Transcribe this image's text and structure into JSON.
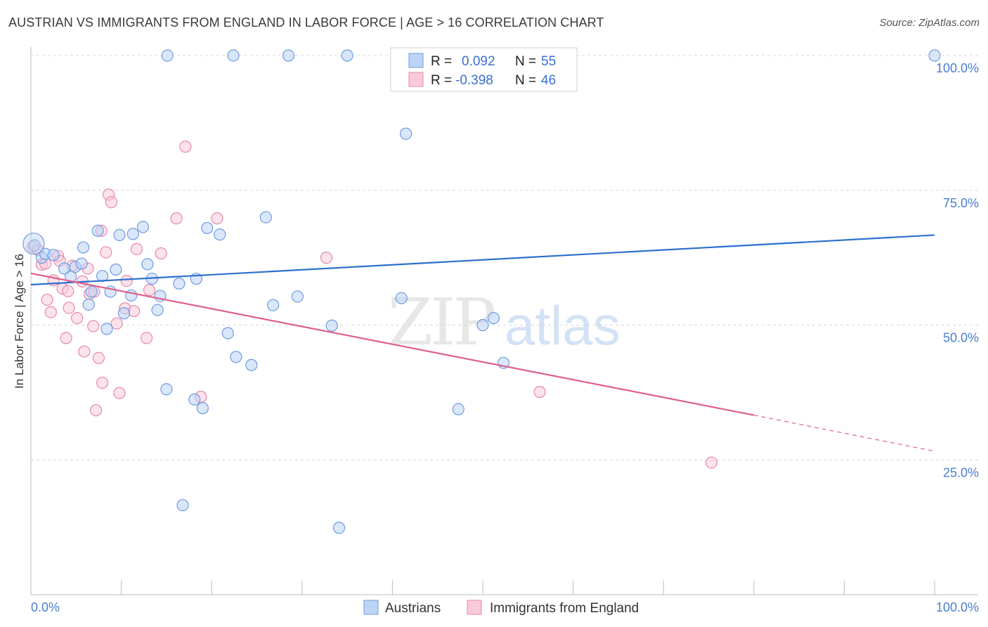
{
  "title": "AUSTRIAN VS IMMIGRANTS FROM ENGLAND IN LABOR FORCE | AGE > 16 CORRELATION CHART",
  "source": "Source: ZipAtlas.com",
  "watermark": {
    "zip": "ZIP",
    "atlas": "atlas"
  },
  "colors": {
    "blue_fill": "#bcd4f5",
    "blue_stroke": "#6f9be0",
    "blue_line": "#2b6fd0",
    "pink_fill": "#f9cad9",
    "pink_stroke": "#e58aaa",
    "pink_line": "#e0608c",
    "grid": "#d8d8d8",
    "axis_text": "#4a7fd0"
  },
  "legend_box": {
    "rows": [
      {
        "r_label": "R =",
        "r_value": "0.092",
        "n_label": "N =",
        "n_value": "55",
        "series": "Austrians"
      },
      {
        "r_label": "R =",
        "r_value": "-0.398",
        "n_label": "N =",
        "n_value": "46",
        "series": "Immigrants from England"
      }
    ]
  },
  "chart_data": {
    "type": "scatter",
    "title": "AUSTRIAN VS IMMIGRANTS FROM ENGLAND IN LABOR FORCE | AGE > 16 CORRELATION CHART",
    "xlabel": "",
    "ylabel": "In Labor Force | Age > 16",
    "xlim": [
      0,
      100
    ],
    "ylim": [
      0,
      100
    ],
    "x_tick_labels": [
      "0.0%",
      "100.0%"
    ],
    "y_ticks": [
      {
        "value": 100,
        "label": "100.0%"
      },
      {
        "value": 75,
        "label": "75.0%"
      },
      {
        "value": 50,
        "label": "50.0%"
      },
      {
        "value": 25,
        "label": "25.0%"
      }
    ],
    "legend_position": "bottom",
    "series": [
      {
        "name": "Austrians",
        "color": "#6f9be0",
        "trend": {
          "x": [
            0,
            100
          ],
          "y": [
            57.5,
            66.7
          ]
        },
        "points": [
          [
            0.4,
            64.8
          ],
          [
            1.2,
            62.5
          ],
          [
            1.6,
            63.2
          ],
          [
            2.5,
            63.0
          ],
          [
            3.7,
            60.5
          ],
          [
            4.4,
            59.0
          ],
          [
            4.9,
            60.8
          ],
          [
            5.6,
            61.4
          ],
          [
            5.8,
            64.4
          ],
          [
            6.4,
            53.8
          ],
          [
            6.7,
            56.2
          ],
          [
            7.4,
            67.5
          ],
          [
            7.9,
            59.1
          ],
          [
            8.4,
            49.3
          ],
          [
            8.8,
            56.2
          ],
          [
            9.4,
            60.3
          ],
          [
            9.8,
            66.7
          ],
          [
            10.3,
            52.2
          ],
          [
            11.1,
            55.5
          ],
          [
            11.3,
            66.9
          ],
          [
            12.4,
            68.2
          ],
          [
            12.9,
            61.3
          ],
          [
            13.4,
            58.6
          ],
          [
            14.0,
            52.8
          ],
          [
            14.3,
            55.4
          ],
          [
            15.1,
            100.0
          ],
          [
            15.0,
            38.1
          ],
          [
            16.4,
            57.7
          ],
          [
            16.8,
            16.6
          ],
          [
            18.1,
            36.2
          ],
          [
            18.3,
            58.6
          ],
          [
            19.0,
            34.6
          ],
          [
            19.5,
            68.0
          ],
          [
            20.9,
            66.8
          ],
          [
            21.8,
            48.5
          ],
          [
            22.4,
            100.0
          ],
          [
            22.7,
            44.1
          ],
          [
            24.4,
            42.6
          ],
          [
            26.0,
            70.0
          ],
          [
            26.8,
            53.7
          ],
          [
            28.5,
            100.0
          ],
          [
            29.5,
            55.3
          ],
          [
            33.3,
            49.9
          ],
          [
            34.1,
            12.4
          ],
          [
            35.0,
            100.0
          ],
          [
            41.0,
            55.0
          ],
          [
            41.5,
            85.5
          ],
          [
            47.3,
            34.4
          ],
          [
            50.0,
            50.0
          ],
          [
            51.2,
            51.3
          ],
          [
            52.3,
            43.0
          ],
          [
            100.0,
            100.0
          ]
        ]
      },
      {
        "name": "Immigrants from England",
        "color": "#e58aaa",
        "trend": {
          "x": [
            0,
            80
          ],
          "y": [
            59.6,
            33.3
          ],
          "dashed_extension": {
            "x": [
              80,
              100
            ],
            "y": [
              33.3,
              26.6
            ]
          }
        },
        "points": [
          [
            0.2,
            64.5
          ],
          [
            0.8,
            63.9
          ],
          [
            1.2,
            61.2
          ],
          [
            1.6,
            61.4
          ],
          [
            1.8,
            54.7
          ],
          [
            2.2,
            52.4
          ],
          [
            2.5,
            58.3
          ],
          [
            3.0,
            62.8
          ],
          [
            3.2,
            61.9
          ],
          [
            3.5,
            56.8
          ],
          [
            3.9,
            47.6
          ],
          [
            4.1,
            56.3
          ],
          [
            4.2,
            53.2
          ],
          [
            4.6,
            61.0
          ],
          [
            5.1,
            51.3
          ],
          [
            5.7,
            58.1
          ],
          [
            5.9,
            45.1
          ],
          [
            6.3,
            60.5
          ],
          [
            6.5,
            55.8
          ],
          [
            6.9,
            49.8
          ],
          [
            7.0,
            56.2
          ],
          [
            7.2,
            34.2
          ],
          [
            7.5,
            43.9
          ],
          [
            7.8,
            67.5
          ],
          [
            7.9,
            39.3
          ],
          [
            8.3,
            63.5
          ],
          [
            8.6,
            74.2
          ],
          [
            8.9,
            72.8
          ],
          [
            9.5,
            50.3
          ],
          [
            9.8,
            37.4
          ],
          [
            10.4,
            53.1
          ],
          [
            10.6,
            58.2
          ],
          [
            11.4,
            52.6
          ],
          [
            11.7,
            64.1
          ],
          [
            12.8,
            47.6
          ],
          [
            13.1,
            56.5
          ],
          [
            14.4,
            63.3
          ],
          [
            16.1,
            69.8
          ],
          [
            17.1,
            83.1
          ],
          [
            18.8,
            36.7
          ],
          [
            20.6,
            69.8
          ],
          [
            32.7,
            62.5
          ],
          [
            56.3,
            37.6
          ],
          [
            75.3,
            24.5
          ]
        ]
      }
    ]
  },
  "bottom_legend": {
    "items": [
      "Austrians",
      "Immigrants from England"
    ]
  }
}
